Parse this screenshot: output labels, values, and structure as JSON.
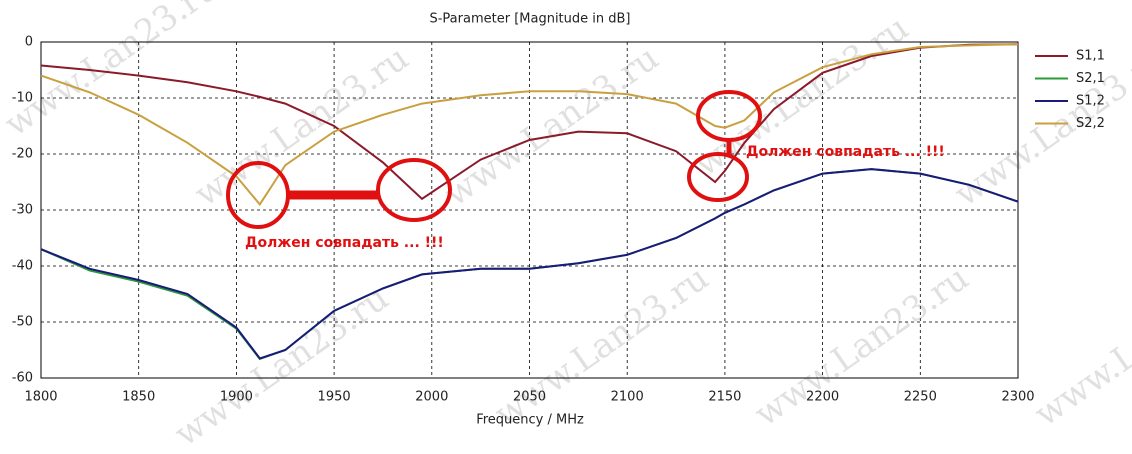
{
  "chart_data": {
    "type": "line",
    "title": "S-Parameter [Magnitude in dB]",
    "x_label": "Frequency / MHz",
    "x": [
      1800,
      1825,
      1850,
      1875,
      1900,
      1912,
      1925,
      1950,
      1975,
      1995,
      2025,
      2050,
      2075,
      2100,
      2125,
      2145,
      2150,
      2160,
      2175,
      2200,
      2225,
      2250,
      2275,
      2300
    ],
    "series": [
      {
        "name": "S1,1",
        "color": "#8b1a2a",
        "values": [
          -4.2,
          -5,
          -6,
          -7.2,
          -8.8,
          -9.8,
          -11,
          -15,
          -21.5,
          -28,
          -21,
          -17.5,
          -16,
          -16.3,
          -19.5,
          -25,
          -23,
          -18,
          -12,
          -5.5,
          -2.5,
          -1,
          -0.5,
          -0.4
        ]
      },
      {
        "name": "S2,1",
        "color": "#2a9a3a",
        "values": [
          -37,
          -40.8,
          -42.8,
          -45.3,
          -51.2,
          -56.6,
          -55,
          -48,
          -44,
          -41.5,
          -40.5,
          -40.5,
          -39.5,
          -38,
          -35,
          -31.5,
          -30.5,
          -29,
          -26.5,
          -23.5,
          -22.7,
          -23.5,
          -25.5,
          -28.5
        ]
      },
      {
        "name": "S1,2",
        "color": "#1a1a7a",
        "values": [
          -37,
          -40.5,
          -42.5,
          -45,
          -51,
          -56.5,
          -55,
          -48,
          -44,
          -41.5,
          -40.5,
          -40.5,
          -39.5,
          -38,
          -35,
          -31.5,
          -30.5,
          -29,
          -26.5,
          -23.5,
          -22.7,
          -23.5,
          -25.5,
          -28.5
        ]
      },
      {
        "name": "S2,2",
        "color": "#c8a040",
        "values": [
          -6,
          -9,
          -13,
          -18,
          -24,
          -29,
          -22,
          -16,
          -13,
          -11,
          -9.5,
          -8.8,
          -8.8,
          -9.3,
          -11,
          -15,
          -15.3,
          -14,
          -9,
          -4.5,
          -2.2,
          -0.9,
          -0.6,
          -0.4
        ]
      }
    ],
    "xlim": [
      1800,
      2300
    ],
    "ylim": [
      -60,
      0
    ],
    "xticks": [
      1800,
      1850,
      1900,
      1950,
      2000,
      2050,
      2100,
      2150,
      2200,
      2250,
      2300
    ],
    "yticks": [
      0,
      -10,
      -20,
      -30,
      -40,
      -50,
      -60
    ],
    "grid": true,
    "annotations": [
      "Должен совпадать ... !!!",
      "Должен совпадать ... !!!"
    ],
    "watermark": "www.Lan23.ru"
  }
}
